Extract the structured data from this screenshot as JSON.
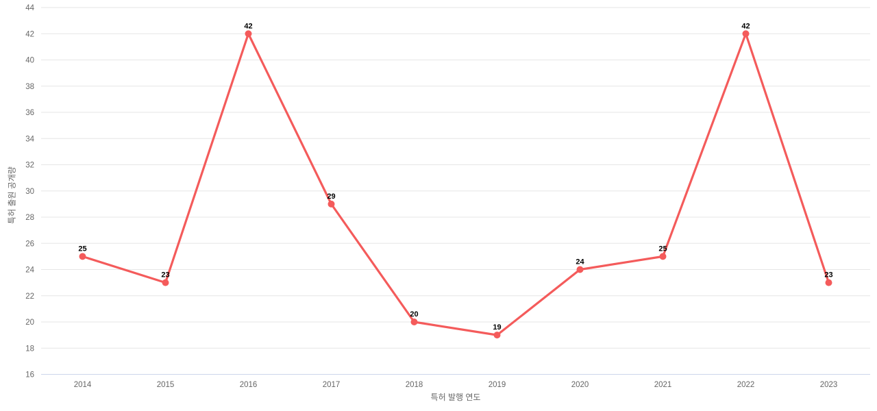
{
  "chart_data": {
    "type": "line",
    "title": "",
    "categories": [
      "2014",
      "2015",
      "2016",
      "2017",
      "2018",
      "2019",
      "2020",
      "2021",
      "2022",
      "2023"
    ],
    "values": [
      25,
      23,
      42,
      29,
      20,
      19,
      24,
      25,
      42,
      23
    ],
    "xlabel": "특허 발행 연도",
    "ylabel": "특허 출원 공개량",
    "ylim": [
      16,
      44
    ],
    "ytick_step": 2,
    "yticks": [
      16,
      18,
      20,
      22,
      24,
      26,
      28,
      30,
      32,
      34,
      36,
      38,
      40,
      42,
      44
    ],
    "grid": true,
    "legend_position": "none",
    "colors": {
      "line": "#f45b5b",
      "marker": "#f45b5b",
      "grid_line": "#e6e6e6",
      "axis_line": "#ccd6eb",
      "tick_label": "#666666",
      "axis_title": "#666666",
      "data_label": "#000000"
    }
  }
}
